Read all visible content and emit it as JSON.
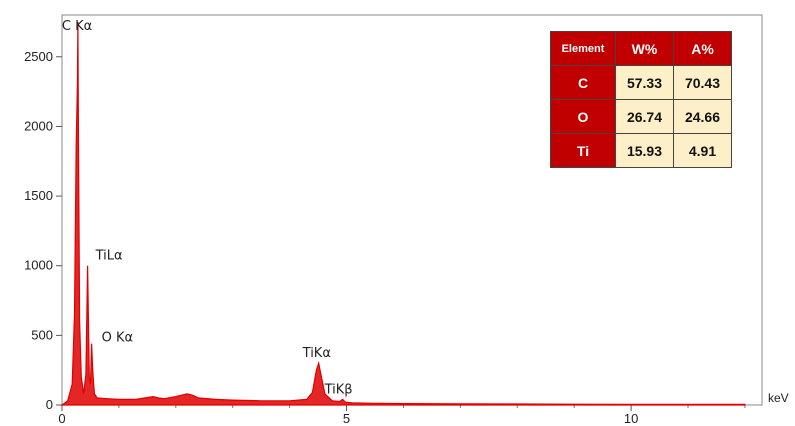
{
  "chart_data": {
    "type": "line",
    "xlabel": "",
    "ylabel": "",
    "x_unit": "keV",
    "xlim": [
      0,
      12.3
    ],
    "ylim": [
      0,
      2800
    ],
    "x_ticks": [
      0,
      5,
      10
    ],
    "y_ticks": [
      0,
      500,
      1000,
      1500,
      2000,
      2500
    ],
    "grid": false,
    "color": "#e00000",
    "peaks": [
      {
        "label": "C Kα",
        "x": 0.28,
        "y": 2750
      },
      {
        "label": "TiLα",
        "x": 0.45,
        "y": 1000
      },
      {
        "label": "O Kα",
        "x": 0.52,
        "y": 440
      },
      {
        "label": "TiKα",
        "x": 4.51,
        "y": 300
      },
      {
        "label": "TiKβ",
        "x": 4.93,
        "y": 40
      }
    ],
    "series": [
      {
        "x": [
          0.0,
          0.1,
          0.18,
          0.22,
          0.25,
          0.27,
          0.28,
          0.29,
          0.31,
          0.34,
          0.38,
          0.42,
          0.45,
          0.48,
          0.5,
          0.52,
          0.54,
          0.57,
          0.62,
          0.8,
          1.0,
          1.3,
          1.6,
          1.7,
          1.8,
          2.0,
          2.2,
          2.3,
          2.4,
          2.7,
          3.0,
          3.5,
          4.0,
          4.3,
          4.4,
          4.47,
          4.51,
          4.55,
          4.62,
          4.75,
          4.88,
          4.93,
          4.98,
          5.1,
          5.5,
          6.0,
          7.0,
          8.0,
          9.0,
          10.0,
          11.0,
          12.0
        ],
        "y": [
          0,
          30,
          150,
          650,
          1870,
          2300,
          2750,
          1850,
          600,
          200,
          80,
          220,
          1000,
          200,
          150,
          440,
          250,
          80,
          50,
          45,
          40,
          40,
          60,
          50,
          45,
          60,
          80,
          70,
          50,
          40,
          35,
          30,
          30,
          40,
          90,
          250,
          300,
          220,
          80,
          30,
          25,
          40,
          20,
          15,
          12,
          10,
          8,
          7,
          6,
          5,
          5,
          4
        ]
      }
    ]
  },
  "composition_table": {
    "headers": [
      "Element",
      "W%",
      "A%"
    ],
    "rows": [
      [
        "C",
        "57.33",
        "70.43"
      ],
      [
        "O",
        "26.74",
        "24.66"
      ],
      [
        "Ti",
        "15.93",
        "4.91"
      ]
    ]
  }
}
